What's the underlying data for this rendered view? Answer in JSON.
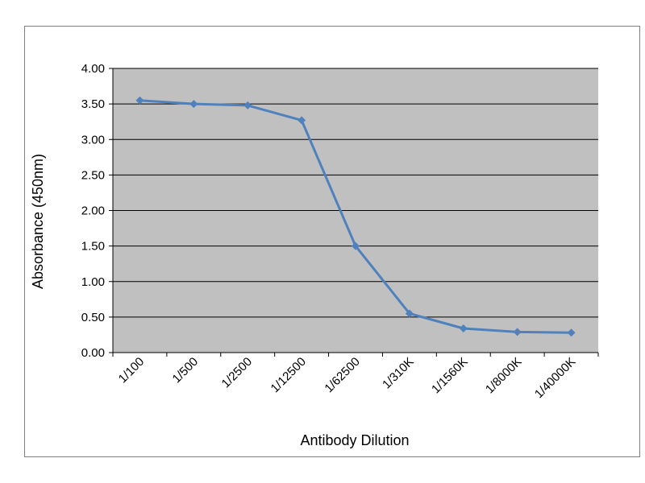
{
  "chart_data": {
    "type": "line",
    "xlabel": "Antibody Dilution",
    "ylabel": "Absorbance (450nm)",
    "categories": [
      "1/100",
      "1/500",
      "1/2500",
      "1/12500",
      "1/62500",
      "1/310K",
      "1/1560K",
      "1/8000K",
      "1/40000K"
    ],
    "series": [
      {
        "values": [
          3.55,
          3.5,
          3.48,
          3.27,
          1.5,
          0.55,
          0.34,
          0.29,
          0.28
        ]
      }
    ],
    "ylim": [
      0,
      4
    ],
    "yticks": [
      "0.00",
      "0.50",
      "1.00",
      "1.50",
      "2.00",
      "2.50",
      "3.00",
      "3.50",
      "4.00"
    ],
    "grid": true,
    "legend": "none",
    "colors": {
      "plot_background": "#c0c0c0",
      "line": "#4f81bd",
      "gridline": "#000000"
    }
  }
}
